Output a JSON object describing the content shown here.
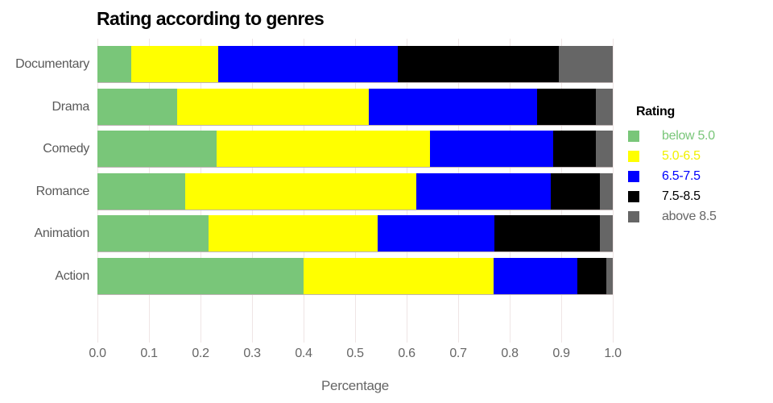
{
  "title": "Rating according to genres",
  "x_axis": {
    "label": "Percentage",
    "ticks": [
      "0.0",
      "0.1",
      "0.2",
      "0.3",
      "0.4",
      "0.5",
      "0.6",
      "0.7",
      "0.8",
      "0.9",
      "1.0"
    ],
    "range": [
      0,
      1
    ]
  },
  "legend": {
    "title": "Rating",
    "items": [
      {
        "label": "below 5.0",
        "color": "#79c679"
      },
      {
        "label": "5.0-6.5",
        "color": "#ffff00"
      },
      {
        "label": "6.5-7.5",
        "color": "#0000ff"
      },
      {
        "label": "7.5-8.5",
        "color": "#000000"
      },
      {
        "label": "above 8.5",
        "color": "#666666"
      }
    ]
  },
  "chart_data": {
    "type": "bar",
    "orientation": "horizontal_stacked",
    "title": "Rating according to genres",
    "xlabel": "Percentage",
    "ylabel": "",
    "xlim": [
      0,
      1
    ],
    "grid": true,
    "legend_position": "right",
    "categories": [
      "Documentary",
      "Drama",
      "Comedy",
      "Romance",
      "Animation",
      "Action"
    ],
    "series": [
      {
        "name": "below 5.0",
        "color": "#79c679",
        "values": [
          0.065,
          0.155,
          0.232,
          0.17,
          0.215,
          0.4
        ]
      },
      {
        "name": "5.0-6.5",
        "color": "#ffff00",
        "values": [
          0.17,
          0.372,
          0.413,
          0.449,
          0.329,
          0.369
        ]
      },
      {
        "name": "6.5-7.5",
        "color": "#0000ff",
        "values": [
          0.348,
          0.326,
          0.24,
          0.26,
          0.226,
          0.163
        ]
      },
      {
        "name": "7.5-8.5",
        "color": "#000000",
        "values": [
          0.312,
          0.114,
          0.082,
          0.096,
          0.205,
          0.055
        ]
      },
      {
        "name": "above 8.5",
        "color": "#666666",
        "values": [
          0.105,
          0.033,
          0.033,
          0.025,
          0.025,
          0.013
        ]
      }
    ]
  }
}
